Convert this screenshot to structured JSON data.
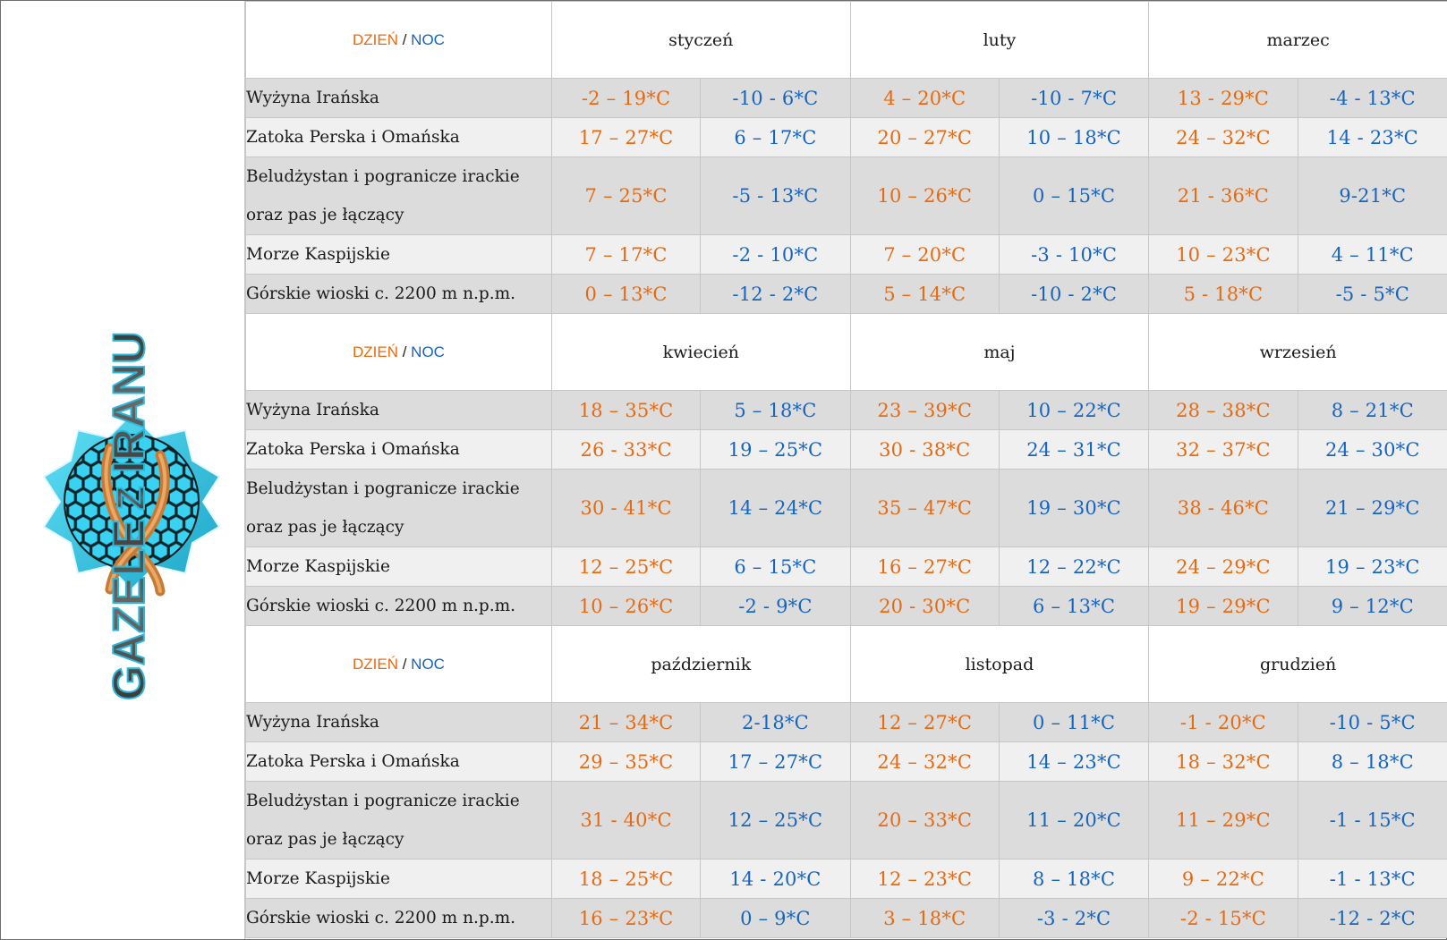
{
  "logo": {
    "text": "GAZELE Z IRANU",
    "word1": "GAZELE",
    "word2": "Z",
    "word3": "IRANU",
    "colors": {
      "ink": "#4a4a4a",
      "teal": "#2bb8d8",
      "cell": "#36d0f0",
      "mesh": "#1a1a1a",
      "horn": "#d88a40"
    }
  },
  "legend": {
    "day": "DZIEŃ",
    "separator": "/",
    "night": "NOC"
  },
  "colors": {
    "day": "#e86a10",
    "night": "#1565c0"
  },
  "blocks": [
    {
      "months": [
        "styczeń",
        "luty",
        "marzec"
      ],
      "rows": [
        {
          "region": "Wyżyna Irańska",
          "values": [
            "-2 – 19*C",
            "-10 - 6*C",
            "4 – 20*C",
            "-10 - 7*C",
            "13 - 29*C",
            "-4 - 13*C"
          ]
        },
        {
          "region": "Zatoka Perska i Omańska",
          "values": [
            "17 – 27*C",
            "6 – 17*C",
            "20 – 27*C",
            "10 – 18*C",
            "24 – 32*C",
            "14 - 23*C"
          ]
        },
        {
          "region": "Beludżystan i pogranicze irackie oraz pas je łączący",
          "values": [
            "7 – 25*C",
            "-5 - 13*C",
            "10 – 26*C",
            "0 – 15*C",
            "21 - 36*C",
            "9-21*C"
          ]
        },
        {
          "region": "Morze Kaspijskie",
          "values": [
            "7 – 17*C",
            "-2 - 10*C",
            "7 – 20*C",
            "-3 - 10*C",
            "10 – 23*C",
            "4 – 11*C"
          ]
        },
        {
          "region": "Górskie wioski c. 2200 m n.p.m.",
          "values": [
            "0 – 13*C",
            "-12 - 2*C",
            "5 – 14*C",
            "-10 - 2*C",
            "5 - 18*C",
            "-5 - 5*C"
          ]
        }
      ]
    },
    {
      "months": [
        "kwiecień",
        "maj",
        "wrzesień"
      ],
      "rows": [
        {
          "region": "Wyżyna Irańska",
          "values": [
            "18 – 35*C",
            "5 – 18*C",
            "23 – 39*C",
            "10 – 22*C",
            "28 – 38*C",
            "8 – 21*C"
          ]
        },
        {
          "region": "Zatoka Perska i Omańska",
          "values": [
            "26 - 33*C",
            "19 – 25*C",
            "30 - 38*C",
            "24 – 31*C",
            "32 – 37*C",
            "24 – 30*C"
          ]
        },
        {
          "region": "Beludżystan i pogranicze irackie oraz pas je łączący",
          "values": [
            "30 - 41*C",
            "14 – 24*C",
            "35 – 47*C",
            "19 – 30*C",
            "38 - 46*C",
            "21 – 29*C"
          ]
        },
        {
          "region": "Morze Kaspijskie",
          "values": [
            "12 – 25*C",
            "6 – 15*C",
            "16 – 27*C",
            "12 – 22*C",
            "24 – 29*C",
            "19 – 23*C"
          ]
        },
        {
          "region": "Górskie wioski c. 2200 m n.p.m.",
          "values": [
            "10 – 26*C",
            "-2 - 9*C",
            "20 - 30*C",
            "6 – 13*C",
            "19 – 29*C",
            "9 – 12*C"
          ]
        }
      ]
    },
    {
      "months": [
        "październik",
        "listopad",
        "grudzień"
      ],
      "rows": [
        {
          "region": "Wyżyna Irańska",
          "values": [
            "21 – 34*C",
            "2-18*C",
            "12 – 27*C",
            "0 – 11*C",
            "-1 - 20*C",
            "-10 - 5*C"
          ]
        },
        {
          "region": "Zatoka Perska i Omańska",
          "values": [
            "29 – 35*C",
            "17 – 27*C",
            "24 – 32*C",
            "14 – 23*C",
            "18 – 32*C",
            "8 – 18*C"
          ]
        },
        {
          "region": "Beludżystan i pogranicze irackie oraz pas je łączący",
          "values": [
            "31 - 40*C",
            "12 – 25*C",
            "20 – 33*C",
            "11 – 20*C",
            "11 – 29*C",
            "-1 - 15*C"
          ]
        },
        {
          "region": "Morze Kaspijskie",
          "values": [
            "18 – 25*C",
            "14 - 20*C",
            "12 – 23*C",
            "8 – 18*C",
            "9 – 22*C",
            "-1 - 13*C"
          ]
        },
        {
          "region": "Górskie wioski c. 2200 m n.p.m.",
          "values": [
            "16 – 23*C",
            "0 – 9*C",
            "3 – 18*C",
            "-3 - 2*C",
            "-2 - 15*C",
            "-12 - 2*C"
          ]
        }
      ]
    }
  ]
}
